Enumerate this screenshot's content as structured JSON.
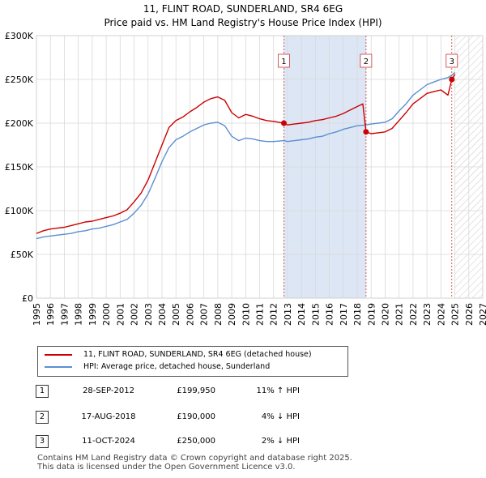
{
  "header": {
    "title": "11, FLINT ROAD, SUNDERLAND, SR4 6EG",
    "subtitle": "Price paid vs. HM Land Registry's House Price Index (HPI)"
  },
  "legend": {
    "property_label": "11, FLINT ROAD, SUNDERLAND, SR4 6EG (detached house)",
    "hpi_label": "HPI: Average price, detached house, Sunderland"
  },
  "sales": [
    {
      "num": "1",
      "date": "28-SEP-2012",
      "price": "£199,950",
      "hpi": "11% ↑ HPI"
    },
    {
      "num": "2",
      "date": "17-AUG-2018",
      "price": "£190,000",
      "hpi": "4% ↓ HPI"
    },
    {
      "num": "3",
      "date": "11-OCT-2024",
      "price": "£250,000",
      "hpi": "2% ↓ HPI"
    }
  ],
  "footer": {
    "line1": "Contains HM Land Registry data © Crown copyright and database right 2025.",
    "line2": "This data is licensed under the Open Government Licence v3.0."
  },
  "colors": {
    "property": "#cc0000",
    "hpi": "#5b8fd0",
    "highlight": "#dde6f5",
    "marker_line": "#cc3333",
    "grid": "#d9d9d9"
  },
  "chart_data": {
    "type": "line",
    "xlim": [
      1995,
      2027
    ],
    "ylim": [
      0,
      300000
    ],
    "x_ticks": [
      1995,
      1996,
      1997,
      1998,
      1999,
      2000,
      2001,
      2002,
      2003,
      2004,
      2005,
      2006,
      2007,
      2008,
      2009,
      2010,
      2011,
      2012,
      2013,
      2014,
      2015,
      2016,
      2017,
      2018,
      2019,
      2020,
      2021,
      2022,
      2023,
      2024,
      2025,
      2026,
      2027
    ],
    "y_ticks": [
      {
        "value": 0,
        "label": "£0"
      },
      {
        "value": 50000,
        "label": "£50K"
      },
      {
        "value": 100000,
        "label": "£100K"
      },
      {
        "value": 150000,
        "label": "£150K"
      },
      {
        "value": 200000,
        "label": "£200K"
      },
      {
        "value": 250000,
        "label": "£250K"
      },
      {
        "value": 300000,
        "label": "£300K"
      }
    ],
    "highlight_ranges": [
      [
        2012.74,
        2018.63
      ]
    ],
    "forecast_from": 2025.0,
    "series": [
      {
        "name": "11, FLINT ROAD, SUNDERLAND, SR4 6EG (detached house)",
        "points": [
          [
            1995.0,
            74000
          ],
          [
            1995.5,
            77000
          ],
          [
            1996.0,
            79000
          ],
          [
            1996.5,
            80000
          ],
          [
            1997.0,
            81000
          ],
          [
            1997.5,
            83000
          ],
          [
            1998.0,
            85000
          ],
          [
            1998.5,
            87000
          ],
          [
            1999.0,
            88000
          ],
          [
            1999.5,
            90000
          ],
          [
            2000.0,
            92000
          ],
          [
            2000.5,
            94000
          ],
          [
            2001.0,
            97000
          ],
          [
            2001.5,
            101000
          ],
          [
            2002.0,
            110000
          ],
          [
            2002.5,
            120000
          ],
          [
            2003.0,
            135000
          ],
          [
            2003.5,
            155000
          ],
          [
            2004.0,
            175000
          ],
          [
            2004.5,
            195000
          ],
          [
            2005.0,
            203000
          ],
          [
            2005.5,
            207000
          ],
          [
            2006.0,
            213000
          ],
          [
            2006.5,
            218000
          ],
          [
            2007.0,
            224000
          ],
          [
            2007.5,
            228000
          ],
          [
            2008.0,
            230000
          ],
          [
            2008.5,
            226000
          ],
          [
            2009.0,
            212000
          ],
          [
            2009.5,
            206000
          ],
          [
            2010.0,
            210000
          ],
          [
            2010.5,
            208000
          ],
          [
            2011.0,
            205000
          ],
          [
            2011.5,
            203000
          ],
          [
            2012.0,
            202000
          ],
          [
            2012.74,
            199950
          ],
          [
            2013.0,
            198000
          ],
          [
            2013.5,
            199000
          ],
          [
            2014.0,
            200000
          ],
          [
            2014.5,
            201000
          ],
          [
            2015.0,
            203000
          ],
          [
            2015.5,
            204000
          ],
          [
            2016.0,
            206000
          ],
          [
            2016.5,
            208000
          ],
          [
            2017.0,
            211000
          ],
          [
            2017.5,
            215000
          ],
          [
            2018.0,
            219000
          ],
          [
            2018.4,
            222000
          ],
          [
            2018.63,
            190000
          ],
          [
            2019.0,
            188000
          ],
          [
            2019.5,
            189000
          ],
          [
            2020.0,
            190000
          ],
          [
            2020.5,
            194000
          ],
          [
            2021.0,
            203000
          ],
          [
            2021.5,
            212000
          ],
          [
            2022.0,
            222000
          ],
          [
            2022.5,
            228000
          ],
          [
            2023.0,
            234000
          ],
          [
            2023.5,
            236000
          ],
          [
            2024.0,
            238000
          ],
          [
            2024.5,
            232000
          ],
          [
            2024.78,
            250000
          ],
          [
            2025.0,
            256000
          ]
        ]
      },
      {
        "name": "HPI: Average price, detached house, Sunderland",
        "points": [
          [
            1995.0,
            68000
          ],
          [
            1995.5,
            70000
          ],
          [
            1996.0,
            71000
          ],
          [
            1996.5,
            72000
          ],
          [
            1997.0,
            73000
          ],
          [
            1997.5,
            74000
          ],
          [
            1998.0,
            76000
          ],
          [
            1998.5,
            77000
          ],
          [
            1999.0,
            79000
          ],
          [
            1999.5,
            80000
          ],
          [
            2000.0,
            82000
          ],
          [
            2000.5,
            84000
          ],
          [
            2001.0,
            87000
          ],
          [
            2001.5,
            90000
          ],
          [
            2002.0,
            97000
          ],
          [
            2002.5,
            106000
          ],
          [
            2003.0,
            119000
          ],
          [
            2003.5,
            137000
          ],
          [
            2004.0,
            156000
          ],
          [
            2004.5,
            172000
          ],
          [
            2005.0,
            181000
          ],
          [
            2005.5,
            185000
          ],
          [
            2006.0,
            190000
          ],
          [
            2006.5,
            194000
          ],
          [
            2007.0,
            198000
          ],
          [
            2007.5,
            200000
          ],
          [
            2008.0,
            201000
          ],
          [
            2008.5,
            197000
          ],
          [
            2009.0,
            185000
          ],
          [
            2009.5,
            180000
          ],
          [
            2010.0,
            183000
          ],
          [
            2010.5,
            182000
          ],
          [
            2011.0,
            180000
          ],
          [
            2011.5,
            179000
          ],
          [
            2012.0,
            179000
          ],
          [
            2012.74,
            180000
          ],
          [
            2013.0,
            179000
          ],
          [
            2013.5,
            180000
          ],
          [
            2014.0,
            181000
          ],
          [
            2014.5,
            182000
          ],
          [
            2015.0,
            184000
          ],
          [
            2015.5,
            185000
          ],
          [
            2016.0,
            188000
          ],
          [
            2016.5,
            190000
          ],
          [
            2017.0,
            193000
          ],
          [
            2017.5,
            195000
          ],
          [
            2018.0,
            197000
          ],
          [
            2018.63,
            198000
          ],
          [
            2019.0,
            199000
          ],
          [
            2019.5,
            200000
          ],
          [
            2020.0,
            201000
          ],
          [
            2020.5,
            205000
          ],
          [
            2021.0,
            214000
          ],
          [
            2021.5,
            222000
          ],
          [
            2022.0,
            232000
          ],
          [
            2022.5,
            238000
          ],
          [
            2023.0,
            244000
          ],
          [
            2023.5,
            247000
          ],
          [
            2024.0,
            250000
          ],
          [
            2024.5,
            252000
          ],
          [
            2024.78,
            255000
          ],
          [
            2025.0,
            258000
          ]
        ]
      }
    ],
    "sale_markers": [
      {
        "label": "1",
        "x": 2012.74,
        "y": 199950
      },
      {
        "label": "2",
        "x": 2018.63,
        "y": 190000
      },
      {
        "label": "3",
        "x": 2024.78,
        "y": 250000
      }
    ]
  }
}
